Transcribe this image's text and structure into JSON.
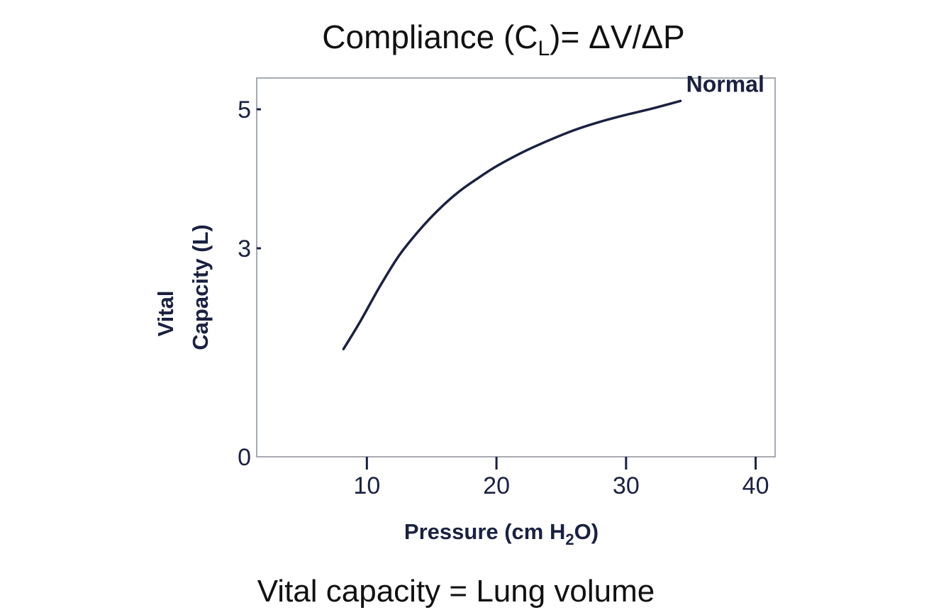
{
  "title": {
    "prefix": "Compliance (C",
    "subscript": "L",
    "suffix": ")= ΔV/ΔP"
  },
  "footer": "Vital capacity = Lung volume",
  "chart_data": {
    "type": "line",
    "xlabel": {
      "prefix": "Pressure (cm H",
      "subscript": "2",
      "suffix": "O)"
    },
    "ylabel": {
      "line1": "Vital",
      "line2": "Capacity (L)"
    },
    "xlim": [
      1.5,
      41.5
    ],
    "ylim": [
      0,
      5.45
    ],
    "x_ticks": [
      10,
      20,
      30,
      40
    ],
    "y_ticks": [
      0,
      3,
      5
    ],
    "grid": false,
    "series": [
      {
        "name": "Normal",
        "color": "#1a2140",
        "points": [
          [
            8.2,
            1.55
          ],
          [
            9.5,
            1.95
          ],
          [
            11,
            2.45
          ],
          [
            12.5,
            2.9
          ],
          [
            14,
            3.25
          ],
          [
            15.5,
            3.55
          ],
          [
            17,
            3.8
          ],
          [
            18.5,
            4.0
          ],
          [
            20,
            4.18
          ],
          [
            22,
            4.38
          ],
          [
            24,
            4.55
          ],
          [
            26,
            4.7
          ],
          [
            28,
            4.82
          ],
          [
            30,
            4.92
          ],
          [
            32,
            5.01
          ],
          [
            34.2,
            5.12
          ]
        ]
      }
    ]
  }
}
